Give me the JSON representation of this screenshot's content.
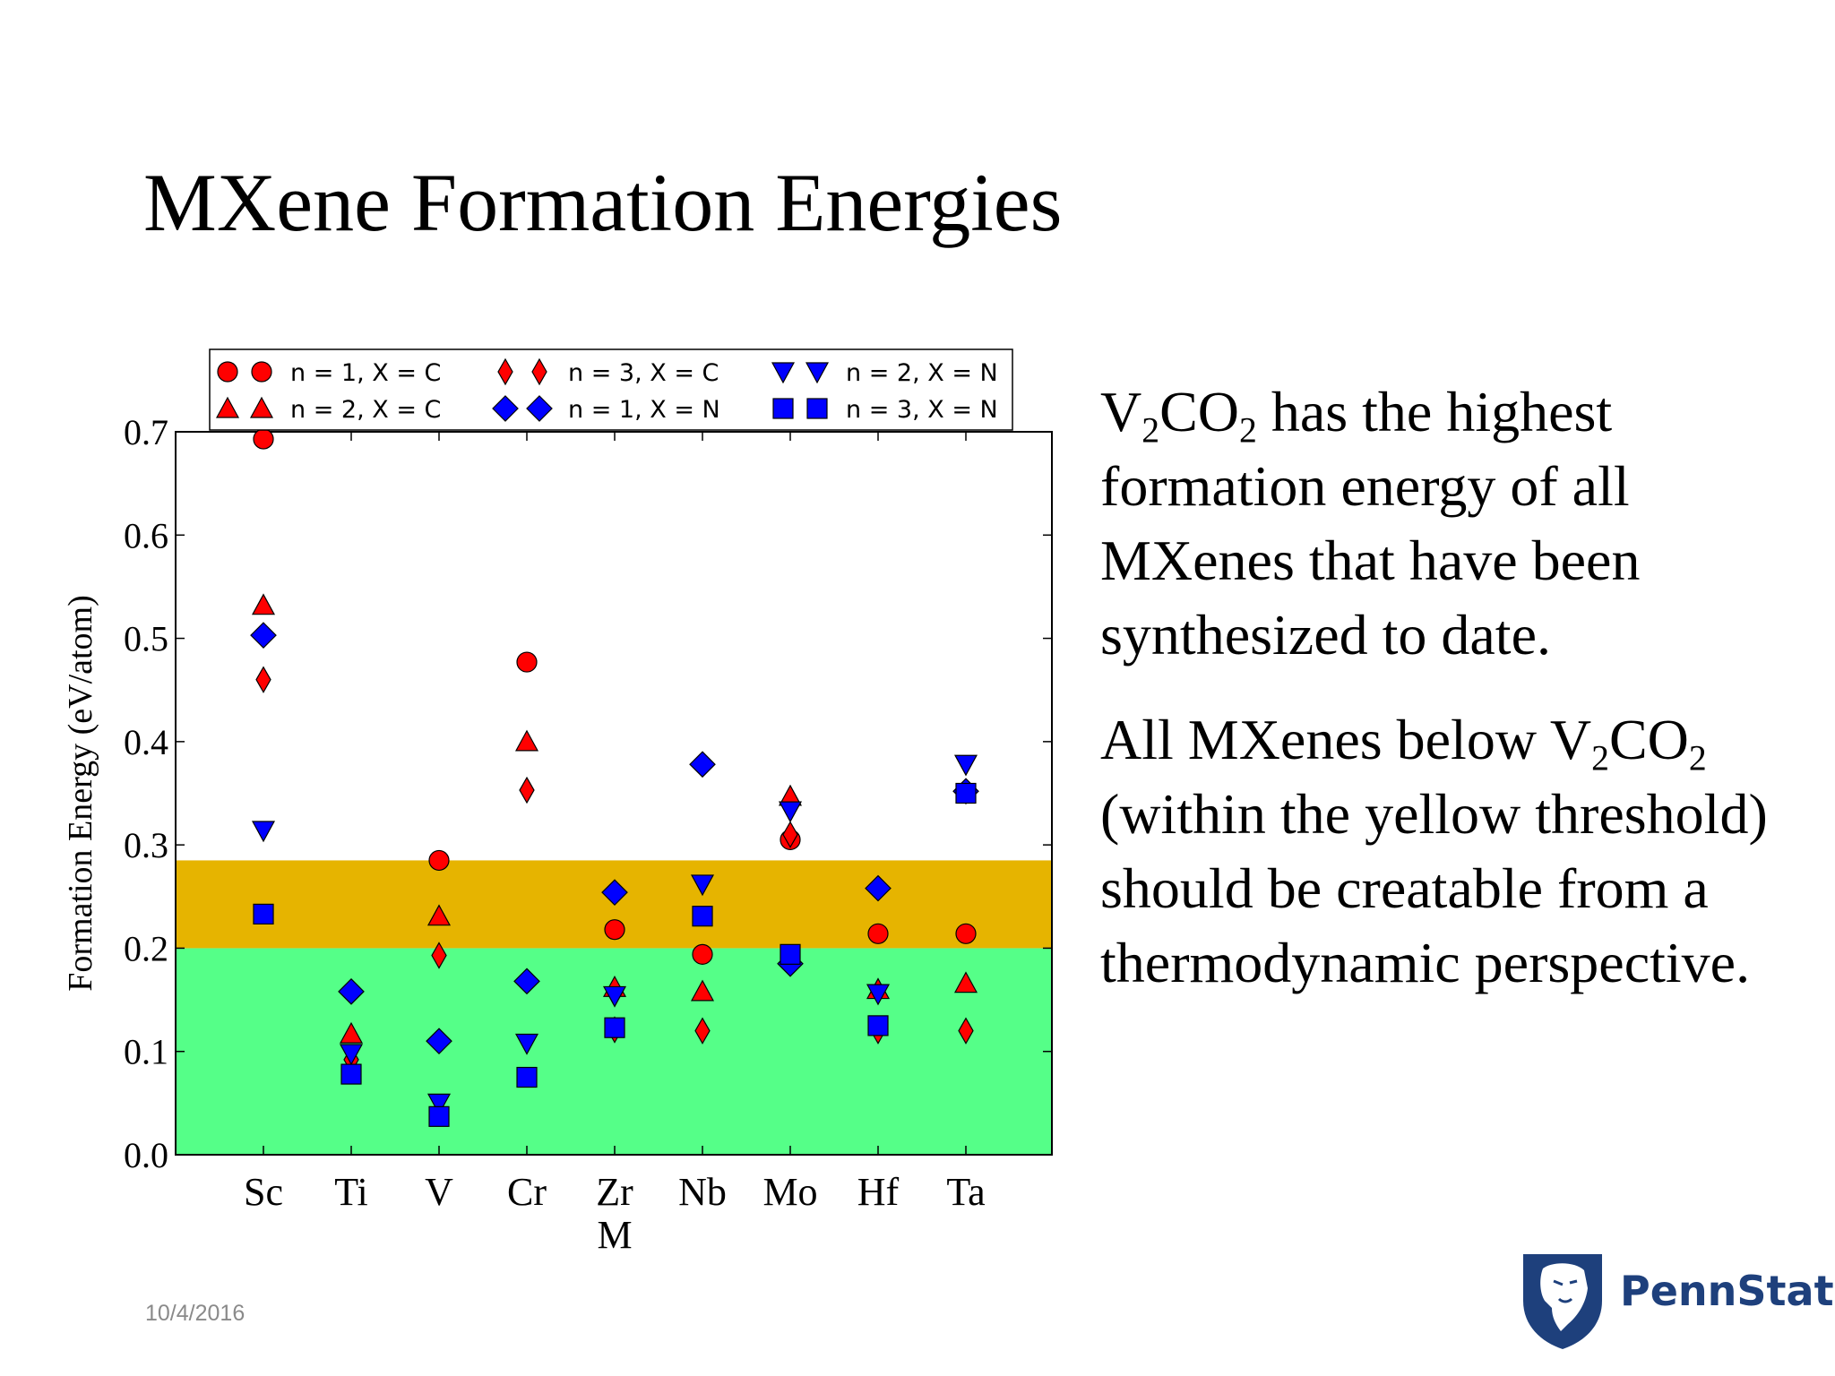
{
  "slide": {
    "title": "MXene Formation Energies",
    "date": "10/4/2016",
    "paragraph1": {
      "formula_v": "V",
      "formula_sub1": "2",
      "formula_co": "CO",
      "formula_sub2": "2",
      "text": " has the highest formation energy of all MXenes that have been synthesized to date."
    },
    "paragraph2": {
      "text_before": "All MXenes below ",
      "formula_v": "V",
      "formula_sub1": "2",
      "formula_co": "CO",
      "formula_sub2": "2",
      "text_after": " (within the yellow threshold) should be creatable from a thermodynamic perspective."
    },
    "logo": {
      "text": "PennState",
      "color": "#1e407c",
      "icon": "nittany-lion-shield-icon"
    }
  },
  "chart_data": {
    "type": "scatter",
    "xlabel": "M",
    "ylabel": "Formation Energy (eV/atom)",
    "categories": [
      "Sc",
      "Ti",
      "V",
      "Cr",
      "Zr",
      "Nb",
      "Mo",
      "Hf",
      "Ta"
    ],
    "ylim": [
      0.0,
      0.7
    ],
    "yticks": [
      "0.0",
      "0.1",
      "0.2",
      "0.3",
      "0.4",
      "0.5",
      "0.6",
      "0.7"
    ],
    "legend_position": "top",
    "bands": [
      {
        "from": 0.0,
        "to": 0.2,
        "color": "#55ff88"
      },
      {
        "from": 0.2,
        "to": 0.285,
        "color": "#e6b400"
      }
    ],
    "series": [
      {
        "name": "n = 1, X = C",
        "marker": "circle",
        "color": "#ff0000",
        "values": [
          0.693,
          null,
          0.285,
          0.477,
          0.218,
          0.194,
          0.305,
          0.214,
          0.214
        ]
      },
      {
        "name": "n = 2, X = C",
        "marker": "triangle-up",
        "color": "#ff0000",
        "values": [
          0.532,
          0.117,
          0.231,
          0.4,
          0.162,
          0.158,
          0.347,
          0.16,
          0.166
        ]
      },
      {
        "name": "n = 3, X = C",
        "marker": "thin-diamond",
        "color": "#ff0000",
        "values": [
          0.46,
          0.092,
          0.193,
          0.353,
          0.121,
          0.12,
          0.31,
          0.12,
          0.12
        ]
      },
      {
        "name": "n = 1, X = N",
        "marker": "diamond",
        "color": "#0000ff",
        "values": [
          0.503,
          0.158,
          0.11,
          0.168,
          0.254,
          0.378,
          0.185,
          0.258,
          0.352
        ]
      },
      {
        "name": "n = 2, X = N",
        "marker": "triangle-down",
        "color": "#0000ff",
        "values": [
          0.314,
          0.098,
          0.05,
          0.108,
          0.154,
          0.262,
          0.333,
          0.156,
          0.378
        ]
      },
      {
        "name": "n = 3, X = N",
        "marker": "square",
        "color": "#0000ff",
        "values": [
          0.233,
          0.078,
          0.037,
          0.075,
          0.123,
          0.231,
          0.194,
          0.125,
          0.35
        ]
      }
    ]
  }
}
